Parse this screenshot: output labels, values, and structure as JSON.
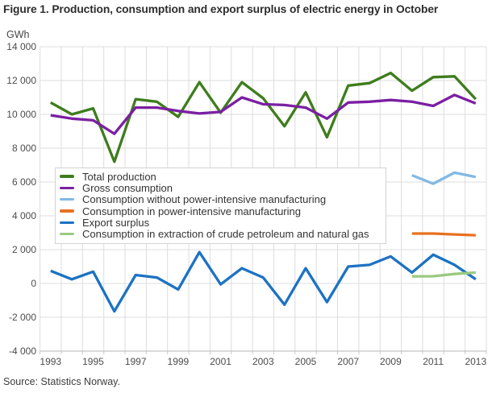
{
  "title": "Figure 1. Production, consumption and export surplus of electric energy in October",
  "source": "Source: Statistics Norway.",
  "chart_data": {
    "type": "line",
    "title": "Figure 1. Production, consumption and export surplus of electric energy in October",
    "xlabel": "",
    "ylabel": "GWh",
    "ylim": [
      -4000,
      14000
    ],
    "grid": true,
    "grid_color": "#dcdcdc",
    "axis_line_color": "#b7b7b7",
    "tick_color": "#c9c9c9",
    "legend_position": "overlay-middle-left",
    "x": [
      1993,
      1994,
      1995,
      1996,
      1997,
      1998,
      1999,
      2000,
      2001,
      2002,
      2003,
      2004,
      2005,
      2006,
      2007,
      2008,
      2009,
      2010,
      2011,
      2012,
      2013
    ],
    "xtick_labels": [
      "1993",
      "1995",
      "1997",
      "1999",
      "2001",
      "2003",
      "2005",
      "2007",
      "2009",
      "2011",
      "2013"
    ],
    "yticks": [
      14000,
      12000,
      10000,
      8000,
      6000,
      4000,
      2000,
      0,
      -2000,
      -4000
    ],
    "ytick_labels": [
      "14 000",
      "12 000",
      "10 000",
      "8 000",
      "6 000",
      "4 000",
      "2 000",
      "0",
      "-2 000",
      "-4 000"
    ],
    "series": [
      {
        "name": "Total production",
        "color": "#3e7d1d",
        "values": [
          10700,
          10000,
          10350,
          7200,
          10900,
          10750,
          9850,
          11900,
          10100,
          11900,
          10950,
          9300,
          11300,
          8650,
          11700,
          11850,
          12450,
          11400,
          12200,
          12250,
          10900
        ]
      },
      {
        "name": "Gross consumption",
        "color": "#7b1fa2",
        "values": [
          9950,
          9750,
          9650,
          8850,
          10400,
          10400,
          10200,
          10050,
          10150,
          11000,
          10600,
          10550,
          10400,
          9750,
          10700,
          10750,
          10850,
          10750,
          10500,
          11150,
          10650
        ]
      },
      {
        "name": "Consumption without power-intensive manufacturing",
        "color": "#83b8e3",
        "values": [
          null,
          null,
          null,
          null,
          null,
          null,
          null,
          null,
          null,
          null,
          null,
          null,
          null,
          null,
          null,
          null,
          null,
          6400,
          5900,
          6550,
          6300
        ]
      },
      {
        "name": "Consumption in power-intensive manufacturing",
        "color": "#e8701f",
        "values": [
          null,
          null,
          null,
          null,
          null,
          null,
          null,
          null,
          null,
          null,
          null,
          null,
          null,
          null,
          null,
          null,
          null,
          2950,
          2950,
          2900,
          2850
        ]
      },
      {
        "name": "Export surplus",
        "color": "#1c72c3",
        "values": [
          750,
          250,
          700,
          -1650,
          500,
          350,
          -350,
          1850,
          -50,
          900,
          350,
          -1250,
          900,
          -1100,
          1000,
          1100,
          1600,
          650,
          1700,
          1100,
          250
        ]
      },
      {
        "name": "Consumption in extraction of crude petroleum and natural gas",
        "color": "#9aca7e",
        "values": [
          null,
          null,
          null,
          null,
          null,
          null,
          null,
          null,
          null,
          null,
          null,
          null,
          null,
          null,
          null,
          null,
          null,
          420,
          430,
          560,
          650
        ]
      }
    ]
  }
}
